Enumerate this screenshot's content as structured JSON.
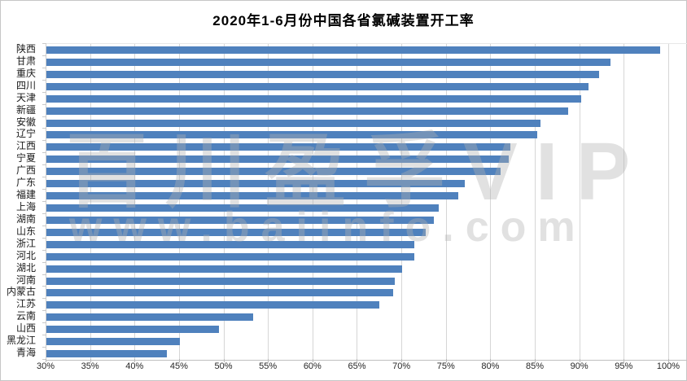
{
  "title": "2020年1-6月份中国各省氯碱装置开工率",
  "watermark": {
    "line1": "百川盈孚VIP",
    "line2": "www.baiinfo.com"
  },
  "colors": {
    "bar": "#4F81BD",
    "gridline": "#d6d6d6",
    "frame_border": "#c6c6c6"
  },
  "chart_data": {
    "type": "bar",
    "orientation": "horizontal",
    "title": "2020年1-6月份中国各省氯碱装置开工率",
    "categories": [
      "陕西",
      "甘肃",
      "重庆",
      "四川",
      "天津",
      "新疆",
      "安徽",
      "辽宁",
      "江西",
      "宁夏",
      "广西",
      "广东",
      "福建",
      "上海",
      "湖南",
      "山东",
      "浙江",
      "河北",
      "湖北",
      "河南",
      "内蒙古",
      "江苏",
      "云南",
      "山西",
      "黑龙江",
      "青海"
    ],
    "values": [
      99.0,
      93.4,
      92.1,
      90.9,
      90.1,
      88.7,
      85.5,
      85.2,
      82.2,
      82.0,
      81.1,
      77.0,
      76.3,
      74.1,
      73.6,
      72.6,
      71.4,
      71.4,
      70.0,
      69.2,
      69.0,
      67.4,
      53.2,
      49.4,
      45.0,
      43.5
    ],
    "unit": "%",
    "xlabel": "",
    "ylabel": "",
    "x_axis": {
      "min": 30,
      "max": 100,
      "step": 5,
      "tick_labels": [
        "30%",
        "35%",
        "40%",
        "45%",
        "50%",
        "55%",
        "60%",
        "65%",
        "70%",
        "75%",
        "80%",
        "85%",
        "90%",
        "95%",
        "100%"
      ]
    },
    "gridlines": true,
    "legend": null,
    "bar_color": "#4F81BD"
  }
}
